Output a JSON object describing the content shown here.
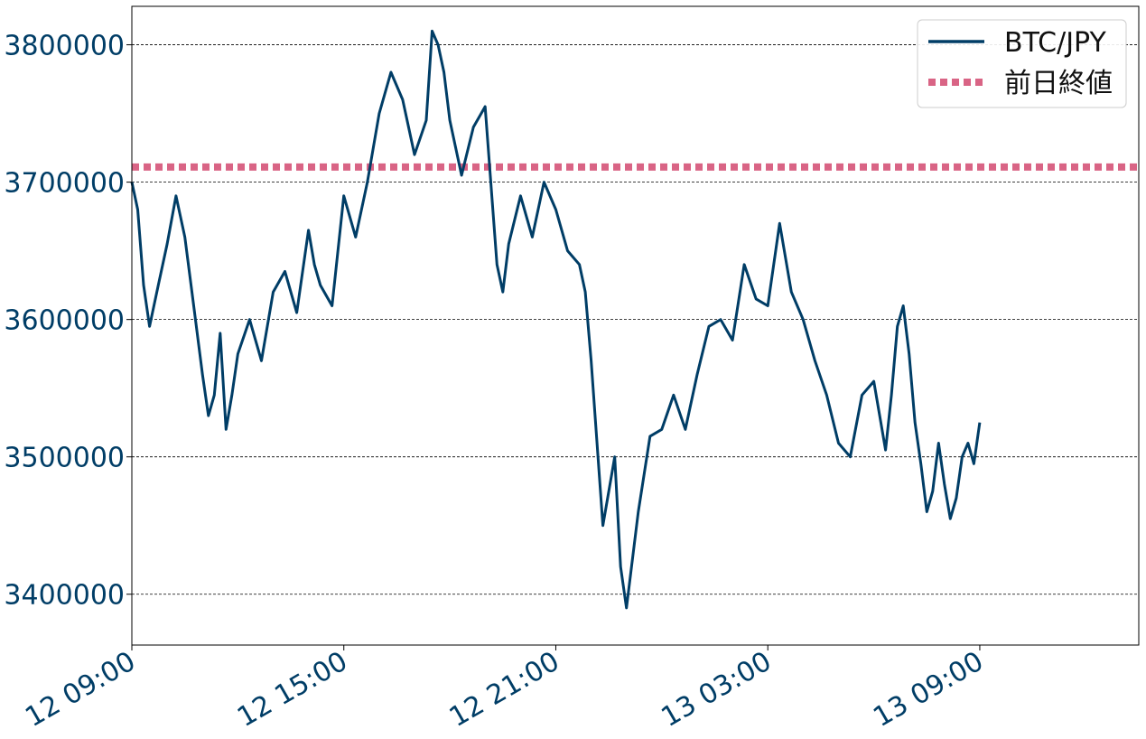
{
  "colors": {
    "series": "#003d66",
    "reference": "#d96485",
    "tick_text": "#003d66",
    "grid": "#000000",
    "axes": "#000000"
  },
  "chart_data": {
    "type": "line",
    "title": "",
    "xlabel": "",
    "ylabel": "",
    "xlim": [
      "12 09:00",
      "13 13:30"
    ],
    "ylim": [
      3363000,
      3828000
    ],
    "yticks": [
      3400000,
      3500000,
      3600000,
      3700000,
      3800000
    ],
    "ytick_labels": [
      "3400000",
      "3500000",
      "3600000",
      "3700000",
      "3800000"
    ],
    "xtick_labels": [
      "12 09:00",
      "12 15:00",
      "12 21:00",
      "13 03:00",
      "13 09:00"
    ],
    "grid": "horizontal dashed",
    "legend_position": "top-right",
    "series": [
      {
        "name": "BTC/JPY",
        "style": "solid",
        "x": [
          "12 09:00",
          "12 09:10",
          "12 09:20",
          "12 09:30",
          "12 09:45",
          "12 10:00",
          "12 10:15",
          "12 10:30",
          "12 10:45",
          "12 11:00",
          "12 11:10",
          "12 11:20",
          "12 11:30",
          "12 11:40",
          "12 11:50",
          "12 12:00",
          "12 12:20",
          "12 12:40",
          "12 13:00",
          "12 13:20",
          "12 13:40",
          "12 14:00",
          "12 14:10",
          "12 14:20",
          "12 14:40",
          "12 15:00",
          "12 15:20",
          "12 15:40",
          "12 16:00",
          "12 16:20",
          "12 16:40",
          "12 17:00",
          "12 17:20",
          "12 17:30",
          "12 17:40",
          "12 17:50",
          "12 18:00",
          "12 18:20",
          "12 18:40",
          "12 19:00",
          "12 19:20",
          "12 19:30",
          "12 19:40",
          "12 20:00",
          "12 20:20",
          "12 20:40",
          "12 21:00",
          "12 21:20",
          "12 21:40",
          "12 21:50",
          "12 22:00",
          "12 22:10",
          "12 22:20",
          "12 22:40",
          "12 22:50",
          "12 23:00",
          "12 23:20",
          "12 23:40",
          "13 00:00",
          "13 00:20",
          "13 00:40",
          "13 01:00",
          "13 01:20",
          "13 01:40",
          "13 02:00",
          "13 02:20",
          "13 02:40",
          "13 03:00",
          "13 03:20",
          "13 03:40",
          "13 04:00",
          "13 04:20",
          "13 04:40",
          "13 05:00",
          "13 05:20",
          "13 05:40",
          "13 06:00",
          "13 06:20",
          "13 06:30",
          "13 06:40",
          "13 06:50",
          "13 07:00",
          "13 07:10",
          "13 07:20",
          "13 07:30",
          "13 07:40",
          "13 07:50",
          "13 08:00",
          "13 08:10",
          "13 08:20",
          "13 08:30",
          "13 08:40",
          "13 08:50",
          "13 09:00"
        ],
        "values": [
          3700000,
          3680000,
          3625000,
          3595000,
          3625000,
          3655000,
          3690000,
          3660000,
          3610000,
          3560000,
          3530000,
          3545000,
          3590000,
          3520000,
          3545000,
          3575000,
          3600000,
          3570000,
          3620000,
          3635000,
          3605000,
          3665000,
          3640000,
          3625000,
          3610000,
          3690000,
          3660000,
          3700000,
          3750000,
          3780000,
          3760000,
          3720000,
          3745000,
          3810000,
          3800000,
          3780000,
          3745000,
          3705000,
          3740000,
          3755000,
          3640000,
          3620000,
          3655000,
          3690000,
          3660000,
          3700000,
          3680000,
          3650000,
          3640000,
          3620000,
          3570000,
          3510000,
          3450000,
          3500000,
          3420000,
          3390000,
          3460000,
          3515000,
          3520000,
          3545000,
          3520000,
          3560000,
          3595000,
          3600000,
          3585000,
          3640000,
          3615000,
          3610000,
          3670000,
          3620000,
          3600000,
          3570000,
          3545000,
          3510000,
          3500000,
          3545000,
          3555000,
          3505000,
          3545000,
          3595000,
          3610000,
          3575000,
          3525000,
          3495000,
          3460000,
          3475000,
          3510000,
          3480000,
          3455000,
          3470000,
          3500000,
          3510000,
          3495000,
          3525000
        ]
      },
      {
        "name": "前日終値",
        "style": "dotted",
        "constant": 3711000
      }
    ]
  }
}
